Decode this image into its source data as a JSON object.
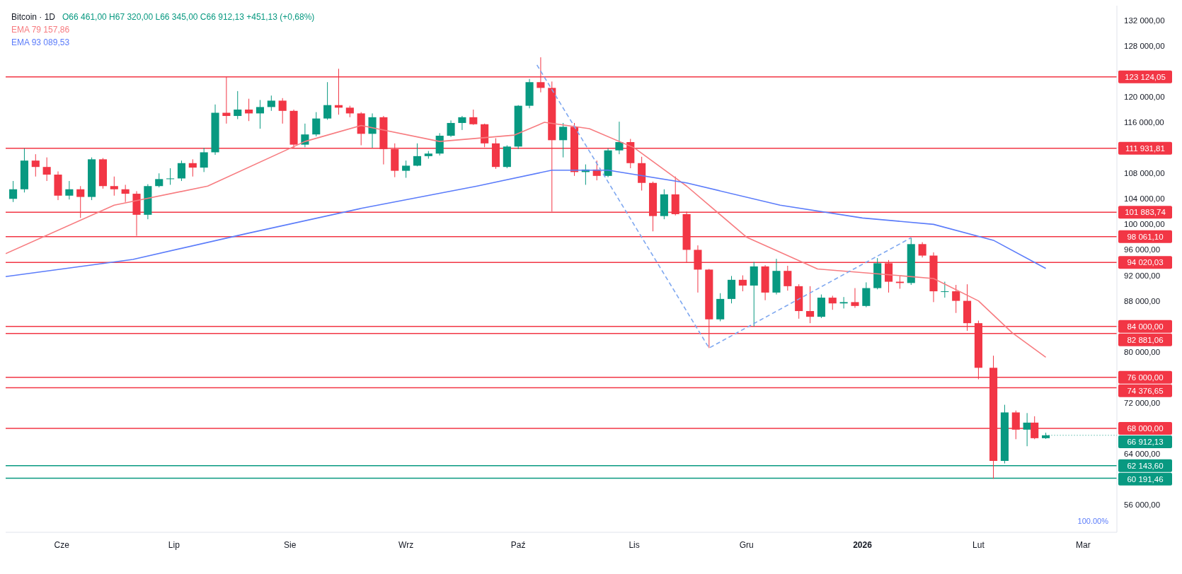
{
  "chart_data": {
    "type": "candlestick",
    "title": "Bitcoin · 1D",
    "annotations": [
      "O66 461,00 H67 320,00 L66 345,00 C66 912,13 +451,13 (+0,68%)",
      {
        "text": "66 912,13",
        "x": "2026-02-19",
        "y": 66912.13
      },
      "100.00%"
    ],
    "legend": "top left",
    "xlim": [
      "2025-05-17",
      "2026-03-10"
    ],
    "xticks": [
      {
        "value": "2025-06-01",
        "label": "Cze"
      },
      {
        "value": "2025-07-01",
        "label": "Lip"
      },
      {
        "value": "2025-08-01",
        "label": "Sie"
      },
      {
        "value": "2025-09-01",
        "label": "Wrz"
      },
      {
        "value": "2025-10-01",
        "label": "Paź"
      },
      {
        "value": "2025-11-01",
        "label": "Lis"
      },
      {
        "value": "2025-12-01",
        "label": "Gru"
      },
      {
        "value": "2026-01-01",
        "label": "2026"
      },
      {
        "value": "2026-02-01",
        "label": "Lut"
      },
      {
        "value": "2026-03-01",
        "label": "Mar"
      }
    ],
    "ylim": [
      51700,
      134300
    ],
    "yticks": [
      {
        "value": 56000,
        "label": "56 000,00"
      },
      {
        "value": 60000,
        "label": null
      },
      {
        "value": 64000,
        "label": "64 000,00"
      },
      {
        "value": 68000,
        "label": null
      },
      {
        "value": 72000,
        "label": "72 000,00"
      },
      {
        "value": 76000,
        "label": null
      },
      {
        "value": 80000,
        "label": "80 000,00"
      },
      {
        "value": 84000,
        "label": null
      },
      {
        "value": 88000,
        "label": "88 000,00"
      },
      {
        "value": 92000,
        "label": "92 000,00"
      },
      {
        "value": 96000,
        "label": "96 000,00"
      },
      {
        "value": 100000,
        "label": "100 000,00"
      },
      {
        "value": 104000,
        "label": "104 000,00"
      },
      {
        "value": 108000,
        "label": "108 000,00"
      },
      {
        "value": 112000,
        "label": null
      },
      {
        "value": 116000,
        "label": "116 000,00"
      },
      {
        "value": 120000,
        "label": "120 000,00"
      },
      {
        "value": 124000,
        "label": null
      },
      {
        "value": 128000,
        "label": "128 000,00"
      },
      {
        "value": 132000,
        "label": "132 000,00"
      }
    ],
    "x": [
      "2025-05-19",
      "2025-05-22",
      "2025-05-25",
      "2025-05-28",
      "2025-05-31",
      "2025-06-03",
      "2025-06-06",
      "2025-06-09",
      "2025-06-12",
      "2025-06-15",
      "2025-06-18",
      "2025-06-21",
      "2025-06-24",
      "2025-06-27",
      "2025-06-30",
      "2025-07-03",
      "2025-07-06",
      "2025-07-09",
      "2025-07-12",
      "2025-07-15",
      "2025-07-18",
      "2025-07-21",
      "2025-07-24",
      "2025-07-27",
      "2025-07-30",
      "2025-08-02",
      "2025-08-05",
      "2025-08-08",
      "2025-08-11",
      "2025-08-14",
      "2025-08-17",
      "2025-08-20",
      "2025-08-23",
      "2025-08-26",
      "2025-08-29",
      "2025-09-01",
      "2025-09-04",
      "2025-09-07",
      "2025-09-10",
      "2025-09-13",
      "2025-09-16",
      "2025-09-19",
      "2025-09-22",
      "2025-09-25",
      "2025-09-28",
      "2025-10-01",
      "2025-10-04",
      "2025-10-07",
      "2025-10-10",
      "2025-10-13",
      "2025-10-16",
      "2025-10-19",
      "2025-10-22",
      "2025-10-25",
      "2025-10-28",
      "2025-10-31",
      "2025-11-03",
      "2025-11-06",
      "2025-11-09",
      "2025-11-12",
      "2025-11-15",
      "2025-11-18",
      "2025-11-21",
      "2025-11-24",
      "2025-11-27",
      "2025-11-30",
      "2025-12-03",
      "2025-12-06",
      "2025-12-09",
      "2025-12-12",
      "2025-12-15",
      "2025-12-18",
      "2025-12-21",
      "2025-12-24",
      "2025-12-27",
      "2025-12-30",
      "2026-01-02",
      "2026-01-05",
      "2026-01-08",
      "2026-01-11",
      "2026-01-14",
      "2026-01-17",
      "2026-01-20",
      "2026-01-23",
      "2026-01-26",
      "2026-01-29",
      "2026-02-01",
      "2026-02-05",
      "2026-02-08",
      "2026-02-11",
      "2026-02-14",
      "2026-02-16",
      "2026-02-19"
    ],
    "ohlc": [
      [
        104000,
        106800,
        103500,
        105500
      ],
      [
        105500,
        111900,
        105000,
        110000
      ],
      [
        110000,
        111000,
        107500,
        109000
      ],
      [
        109000,
        110500,
        106800,
        107800
      ],
      [
        107800,
        108300,
        103800,
        104500
      ],
      [
        104500,
        106800,
        103900,
        105500
      ],
      [
        105500,
        106000,
        101000,
        104300
      ],
      [
        104300,
        110500,
        103800,
        110200
      ],
      [
        110200,
        110400,
        105600,
        106000
      ],
      [
        106000,
        107500,
        104500,
        105500
      ],
      [
        105500,
        106200,
        103500,
        104800
      ],
      [
        104800,
        105200,
        98200,
        101500
      ],
      [
        101500,
        106300,
        100800,
        106000
      ],
      [
        106000,
        108000,
        105800,
        107100
      ],
      [
        107100,
        108800,
        106200,
        107200
      ],
      [
        107200,
        110000,
        106800,
        109600
      ],
      [
        109600,
        110200,
        107500,
        108900
      ],
      [
        108900,
        112000,
        108200,
        111300
      ],
      [
        111300,
        118800,
        110900,
        117500
      ],
      [
        117500,
        123200,
        115800,
        117000
      ],
      [
        117000,
        120900,
        116500,
        118000
      ],
      [
        118000,
        119700,
        116200,
        117400
      ],
      [
        117400,
        119500,
        115000,
        118400
      ],
      [
        118400,
        120200,
        117800,
        119400
      ],
      [
        119400,
        119800,
        115800,
        117800
      ],
      [
        117800,
        118000,
        112000,
        112500
      ],
      [
        112500,
        115800,
        112100,
        114100
      ],
      [
        114100,
        117600,
        113800,
        116600
      ],
      [
        116600,
        122300,
        116400,
        118700
      ],
      [
        118700,
        124400,
        117200,
        118300
      ],
      [
        118300,
        118600,
        116800,
        117400
      ],
      [
        117400,
        117600,
        112400,
        114200
      ],
      [
        114200,
        117400,
        112000,
        116800
      ],
      [
        116800,
        117000,
        109400,
        111800
      ],
      [
        111800,
        112700,
        107400,
        108400
      ],
      [
        108400,
        110000,
        107300,
        109200
      ],
      [
        109200,
        112700,
        109100,
        110700
      ],
      [
        110700,
        111500,
        110300,
        111100
      ],
      [
        111100,
        114300,
        110800,
        113900
      ],
      [
        113900,
        116300,
        113700,
        115900
      ],
      [
        115900,
        117000,
        114800,
        116800
      ],
      [
        116800,
        118000,
        115600,
        115700
      ],
      [
        115700,
        115800,
        112100,
        112700
      ],
      [
        112700,
        113500,
        108700,
        109000
      ],
      [
        109000,
        112400,
        108800,
        112200
      ],
      [
        112200,
        118700,
        111800,
        118600
      ],
      [
        118600,
        122800,
        118200,
        122300
      ],
      [
        122300,
        126200,
        120700,
        121400
      ],
      [
        121400,
        122400,
        102000,
        113200
      ],
      [
        113200,
        115900,
        110500,
        115300
      ],
      [
        115300,
        115900,
        107600,
        108200
      ],
      [
        108200,
        109400,
        106200,
        108600
      ],
      [
        108600,
        110000,
        106900,
        107600
      ],
      [
        107600,
        111900,
        107400,
        111600
      ],
      [
        111600,
        116100,
        111000,
        112900
      ],
      [
        112900,
        113400,
        108800,
        109600
      ],
      [
        109600,
        110600,
        105300,
        106500
      ],
      [
        106500,
        106700,
        98900,
        101300
      ],
      [
        101300,
        105500,
        100800,
        104700
      ],
      [
        104700,
        107500,
        101400,
        101600
      ],
      [
        101600,
        102000,
        94000,
        96000
      ],
      [
        96000,
        96700,
        89300,
        92900
      ],
      [
        92900,
        93000,
        80600,
        85100
      ],
      [
        85100,
        89200,
        84800,
        88300
      ],
      [
        88300,
        91900,
        87600,
        91300
      ],
      [
        91300,
        92000,
        89500,
        90400
      ],
      [
        90400,
        94100,
        84000,
        93400
      ],
      [
        93400,
        93600,
        88100,
        89300
      ],
      [
        89300,
        94600,
        89000,
        92700
      ],
      [
        92700,
        93500,
        89600,
        90300
      ],
      [
        90300,
        90600,
        85200,
        86400
      ],
      [
        86400,
        90300,
        84500,
        85500
      ],
      [
        85500,
        89000,
        85300,
        88500
      ],
      [
        88500,
        88800,
        86600,
        87600
      ],
      [
        87600,
        88600,
        86800,
        87800
      ],
      [
        87800,
        90000,
        86900,
        87200
      ],
      [
        87200,
        90900,
        87000,
        90000
      ],
      [
        90000,
        94700,
        89800,
        93900
      ],
      [
        93900,
        94400,
        89300,
        91000
      ],
      [
        91000,
        91900,
        89900,
        90800
      ],
      [
        90800,
        97900,
        90500,
        96900
      ],
      [
        96900,
        97200,
        94800,
        95100
      ],
      [
        95100,
        95600,
        87800,
        89500
      ],
      [
        89500,
        91000,
        88500,
        89500
      ],
      [
        89500,
        90500,
        86100,
        88000
      ],
      [
        88000,
        90600,
        83300,
        84500
      ],
      [
        84500,
        84900,
        75700,
        77500
      ],
      [
        77500,
        79400,
        60100,
        62900
      ],
      [
        62900,
        71700,
        62500,
        70500
      ],
      [
        70500,
        70800,
        66300,
        67800
      ],
      [
        67800,
        70400,
        65200,
        68900
      ],
      [
        68900,
        69900,
        66300,
        66461
      ],
      [
        66461,
        67320,
        66345,
        66912.13
      ]
    ],
    "series": [
      {
        "name": "EMA 79 157,86",
        "type": "line",
        "color": "#f77c80",
        "x": [
          "2025-05-17",
          "2025-06-15",
          "2025-07-10",
          "2025-08-05",
          "2025-08-20",
          "2025-09-10",
          "2025-09-30",
          "2025-10-08",
          "2025-10-20",
          "2025-11-01",
          "2025-11-15",
          "2025-12-01",
          "2025-12-20",
          "2026-01-10",
          "2026-01-20",
          "2026-02-01",
          "2026-02-10",
          "2026-02-19"
        ],
        "values": [
          95400,
          103000,
          106000,
          113000,
          115500,
          113000,
          114000,
          116000,
          115000,
          112000,
          106000,
          98000,
          93000,
          92000,
          91500,
          88000,
          83000,
          79160
        ]
      },
      {
        "name": "EMA 93 089,53",
        "type": "line",
        "color": "#5b7cfa",
        "x": [
          "2025-05-17",
          "2025-06-20",
          "2025-07-20",
          "2025-08-20",
          "2025-09-20",
          "2025-10-10",
          "2025-10-25",
          "2025-11-15",
          "2025-12-10",
          "2026-01-01",
          "2026-01-20",
          "2026-02-05",
          "2026-02-19"
        ],
        "values": [
          91800,
          94500,
          98500,
          102500,
          106000,
          108500,
          108500,
          106500,
          103000,
          101000,
          100000,
          97500,
          93090
        ]
      },
      {
        "type": "line",
        "color": "#7fa8f0",
        "line_style": "dashed",
        "x": [
          "2025-10-06",
          "2025-11-21",
          "2026-01-14"
        ],
        "values": [
          125000,
          80600,
          97900
        ]
      }
    ],
    "ref_lines": [
      {
        "axis": "y",
        "value": 123124.05,
        "label": "123 124,05",
        "color": "#f23645"
      },
      {
        "axis": "y",
        "value": 111931.81,
        "label": "111 931,81",
        "color": "#f23645"
      },
      {
        "axis": "y",
        "value": 101883.74,
        "label": "101 883,74",
        "color": "#f23645"
      },
      {
        "axis": "y",
        "value": 98061.1,
        "label": "98 061,10",
        "color": "#f23645"
      },
      {
        "axis": "y",
        "value": 94020.03,
        "label": "94 020,03",
        "color": "#f23645"
      },
      {
        "axis": "y",
        "value": 84000,
        "label": "84 000,00",
        "color": "#f23645"
      },
      {
        "axis": "y",
        "value": 82881.06,
        "label": "82 881,06",
        "color": "#f23645"
      },
      {
        "axis": "y",
        "value": 76000,
        "label": "76 000,00",
        "color": "#f23645"
      },
      {
        "axis": "y",
        "value": 74376.65,
        "label": "74 376,65",
        "color": "#f23645"
      },
      {
        "axis": "y",
        "value": 68000,
        "label": "68 000,00",
        "color": "#f23645"
      },
      {
        "axis": "y",
        "value": 62143.6,
        "label": "62 143,60",
        "color": "#089981"
      },
      {
        "axis": "y",
        "value": 60191.46,
        "label": "60 191,46",
        "color": "#089981"
      }
    ]
  }
}
